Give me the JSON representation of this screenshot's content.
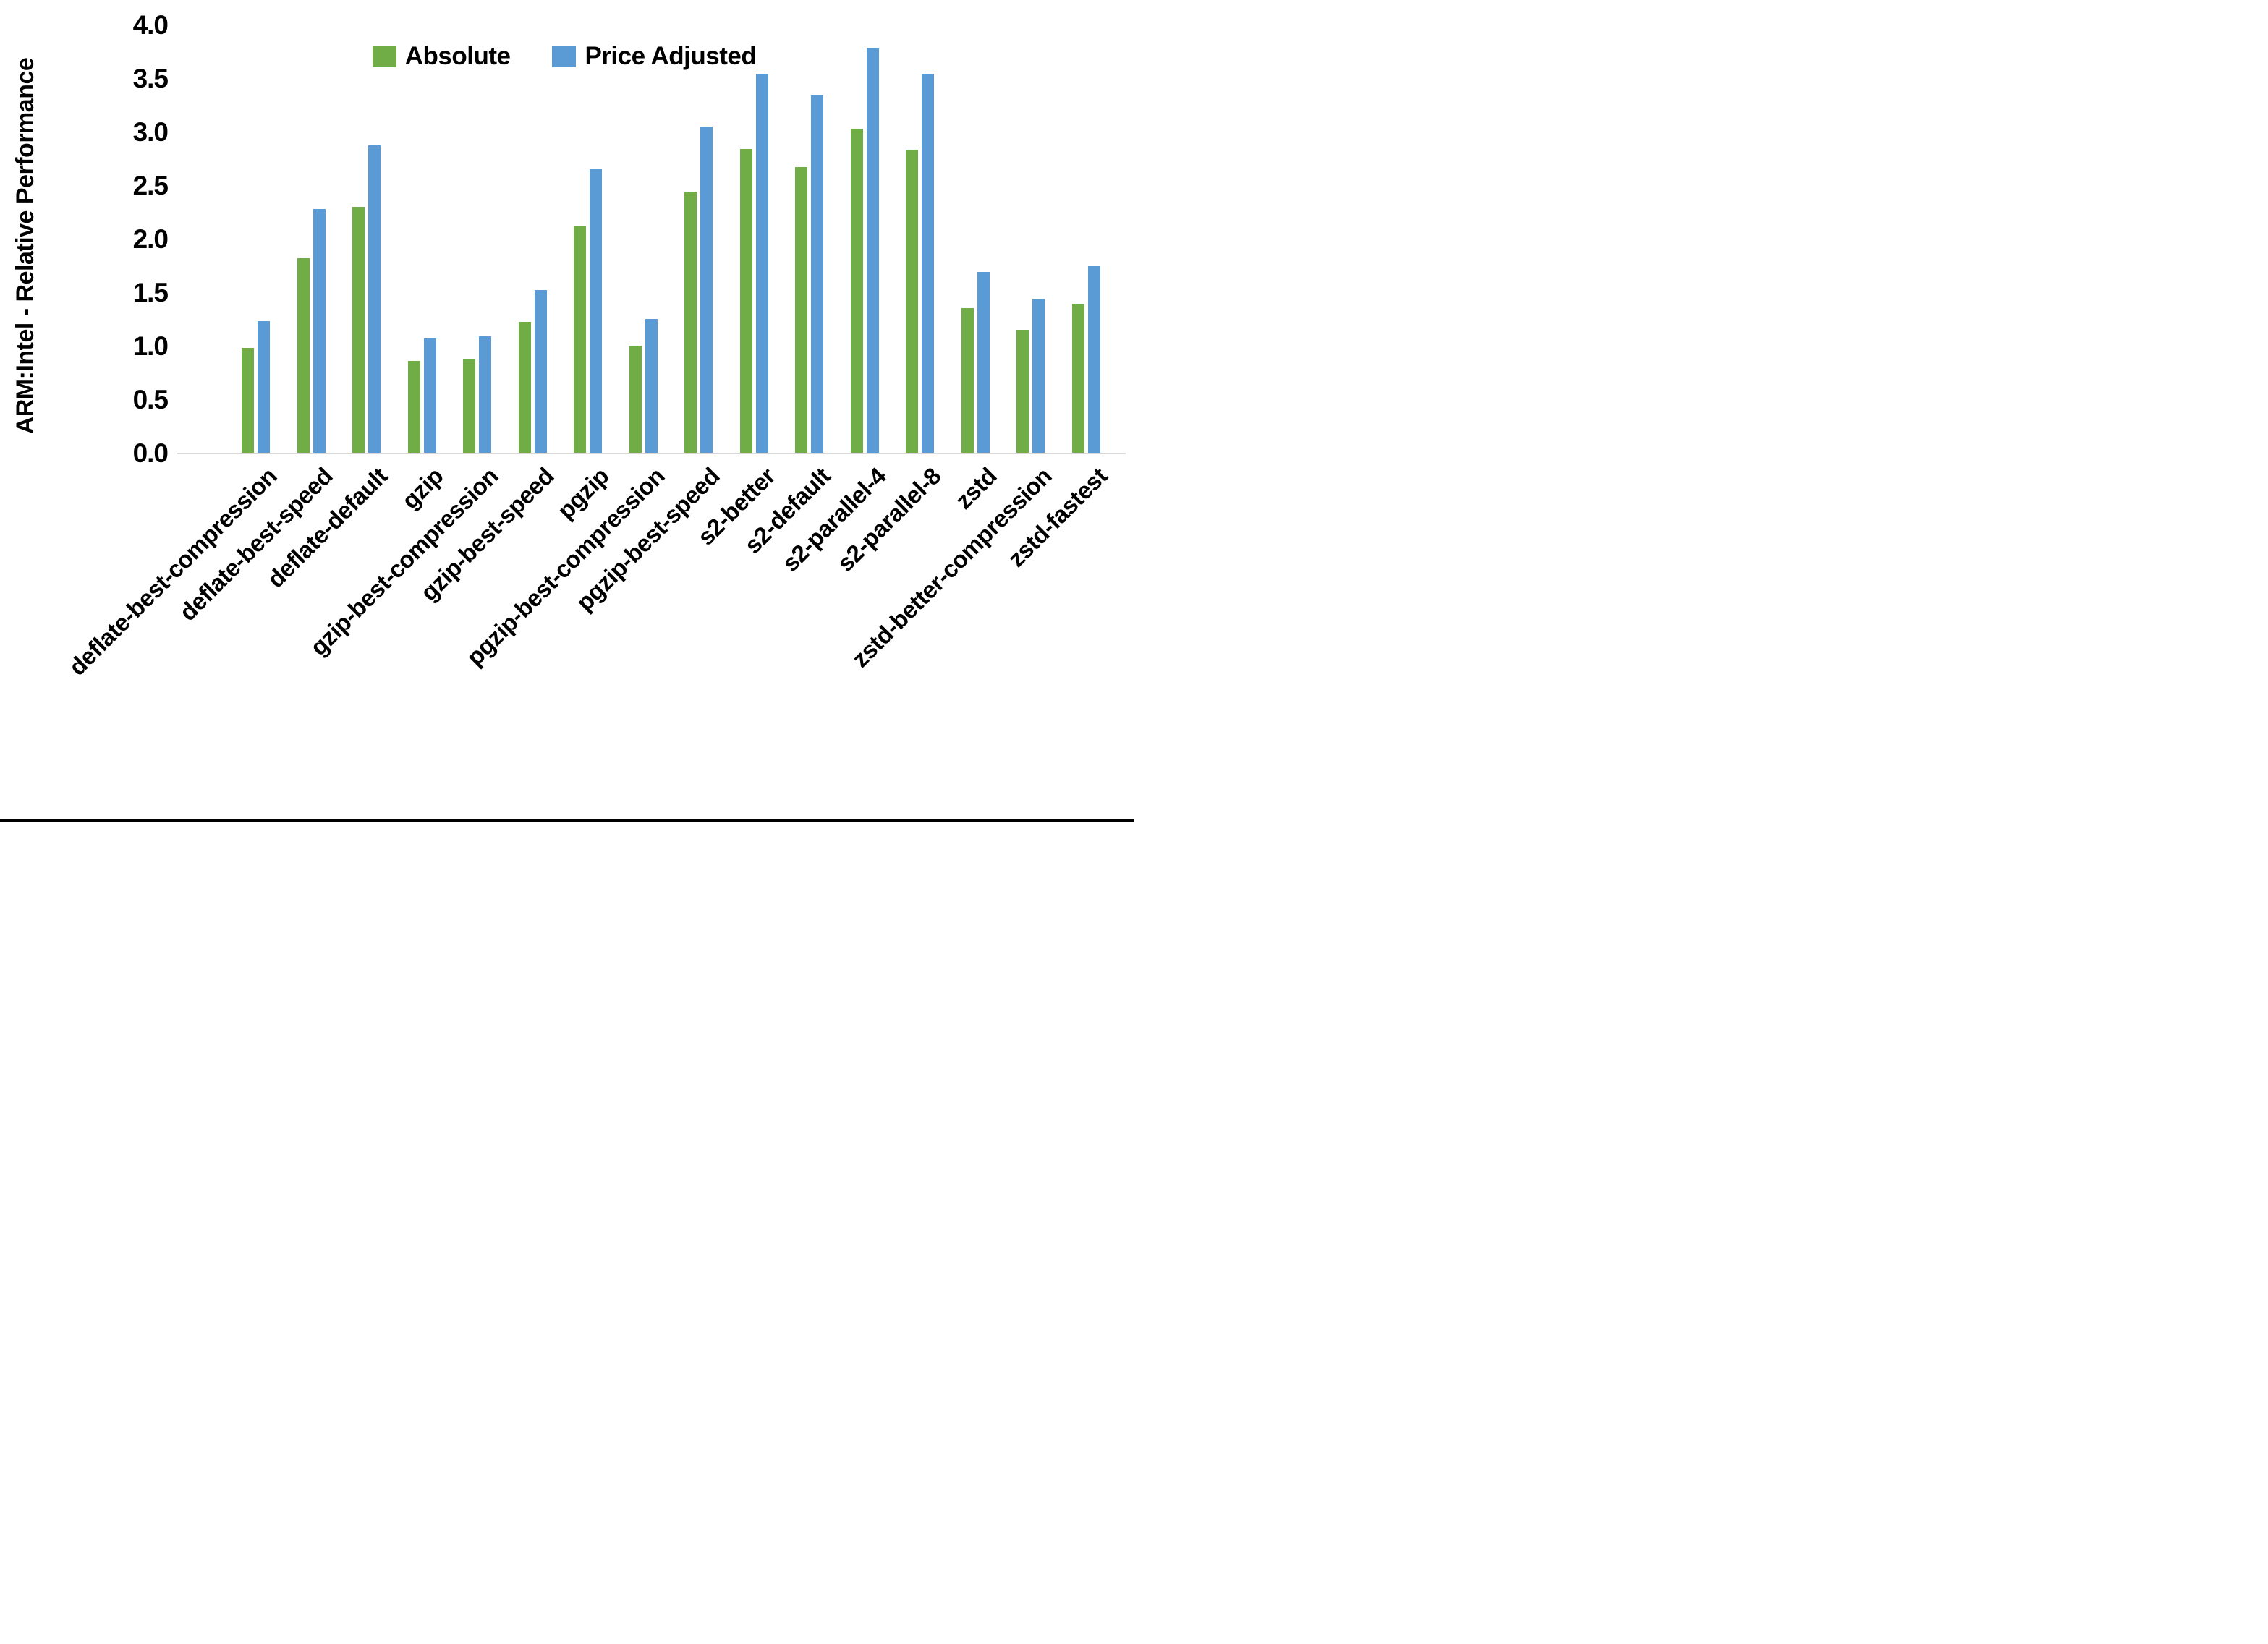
{
  "figure": {
    "background_color": "#ffffff",
    "bottom_border_color": "#000000"
  },
  "chart_data": {
    "type": "bar",
    "title": "",
    "xlabel": "",
    "ylabel": "ARM:Intel - Relative Performance",
    "ylim": [
      0.0,
      4.0
    ],
    "ytick_step": 0.5,
    "ytick_labels": [
      "4.0",
      "3.5",
      "3.0",
      "2.5",
      "2.0",
      "1.5",
      "1.0",
      "0.5",
      "0.0"
    ],
    "grid": false,
    "legend_position": "top-center",
    "axis_line_color": "#d9d9d9",
    "categories": [
      "deflate-best-compression",
      "deflate-best-speed",
      "deflate-default",
      "gzip",
      "gzip-best-compression",
      "gzip-best-speed",
      "pgzip",
      "pgzip-best-compression",
      "pgzip-best-speed",
      "s2-better",
      "s2-default",
      "s2-parallel-4",
      "s2-parallel-8",
      "zstd",
      "zstd-better-compression",
      "zstd-fastest"
    ],
    "series": [
      {
        "name": "Absolute",
        "color": "#70AD47",
        "values": [
          0.98,
          1.82,
          2.3,
          0.86,
          0.87,
          1.22,
          2.12,
          1.0,
          2.44,
          2.84,
          2.67,
          3.03,
          2.83,
          1.35,
          1.15,
          1.39
        ]
      },
      {
        "name": "Price Adjusted",
        "color": "#5B9BD5",
        "values": [
          1.23,
          2.28,
          2.87,
          1.07,
          1.09,
          1.52,
          2.65,
          1.25,
          3.05,
          3.54,
          3.34,
          3.78,
          3.54,
          1.69,
          1.44,
          1.74
        ]
      }
    ]
  }
}
